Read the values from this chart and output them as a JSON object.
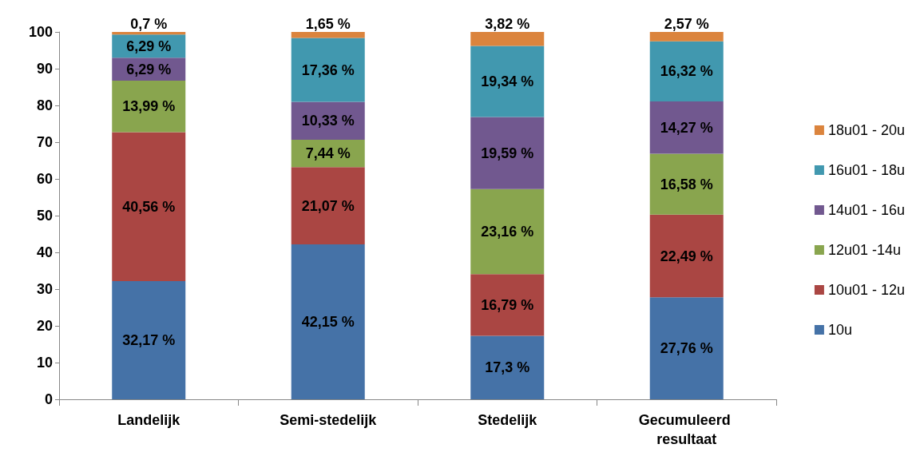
{
  "chart_data": {
    "type": "bar",
    "stacked": true,
    "categories": [
      "Landelijk",
      "Semi-stedelijk",
      "Stedelijk",
      "Gecumuleerd resultaat"
    ],
    "series": [
      {
        "name": "10u",
        "color": "#4572a7",
        "values": [
          32.17,
          42.15,
          17.3,
          27.76
        ],
        "value_labels": [
          "32,17 %",
          "42,15 %",
          "17,3 %",
          "27,76 %"
        ]
      },
      {
        "name": "10u01 - 12u",
        "color": "#aa4643",
        "values": [
          40.56,
          21.07,
          16.79,
          22.49
        ],
        "value_labels": [
          "40,56 %",
          "21,07 %",
          "16,79 %",
          "22,49 %"
        ]
      },
      {
        "name": "12u01 -14u",
        "color": "#89a54e",
        "values": [
          13.99,
          7.44,
          23.16,
          16.58
        ],
        "value_labels": [
          "13,99 %",
          "7,44 %",
          "23,16 %",
          "16,58 %"
        ]
      },
      {
        "name": "14u01 - 16u",
        "color": "#71588f",
        "values": [
          6.29,
          10.33,
          19.59,
          14.27
        ],
        "value_labels": [
          "6,29 %",
          "10,33 %",
          "19,59 %",
          "14,27 %"
        ]
      },
      {
        "name": "16u01 - 18u",
        "color": "#4198af",
        "values": [
          6.29,
          17.36,
          19.34,
          16.32
        ],
        "value_labels": [
          "6,29 %",
          "17,36 %",
          "19,34 %",
          "16,32 %"
        ]
      },
      {
        "name": "18u01 - 20u",
        "color": "#db843d",
        "values": [
          0.7,
          1.65,
          3.82,
          2.57
        ],
        "value_labels": [
          "0,7 %",
          "1,65 %",
          "3,82 %",
          "2,57 %"
        ]
      }
    ],
    "ylim": [
      0,
      100
    ],
    "yticks": [
      0,
      10,
      20,
      30,
      40,
      50,
      60,
      70,
      80,
      90,
      100
    ],
    "grid": false,
    "legend": "right"
  }
}
